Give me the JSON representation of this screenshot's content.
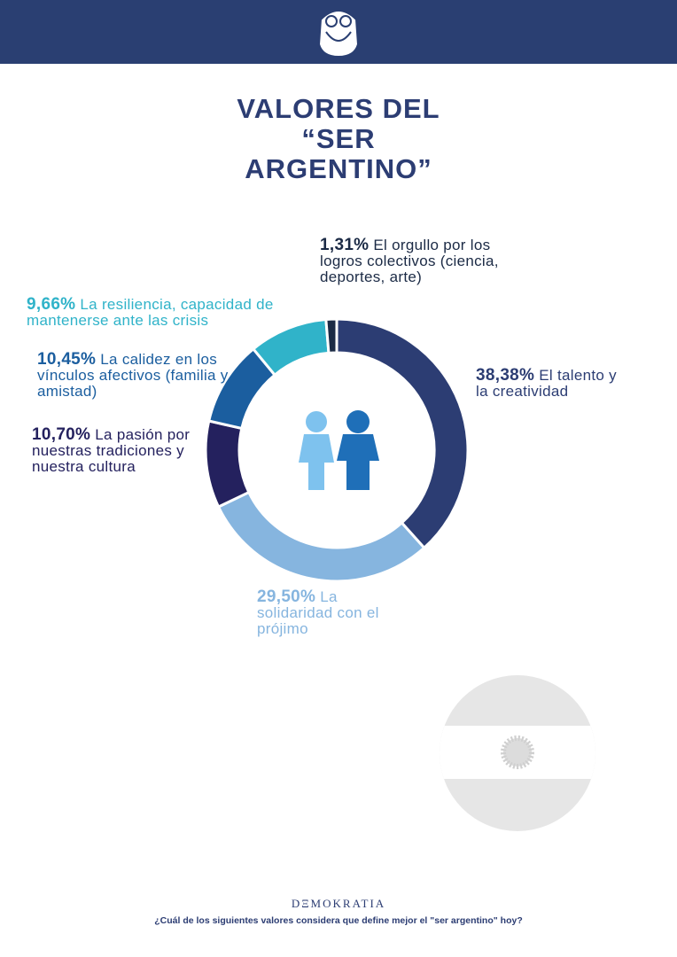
{
  "chart_data": {
    "type": "donut",
    "title": "VALORES DEL “SER ARGENTINO”",
    "categories": [
      "El talento y la creatividad",
      "La solidaridad con el prójimo",
      "La pasión por nuestras tradiciones y nuestra cultura",
      "La calidez en los vínculos afectivos (familia y amistad)",
      "La resiliencia, capacidad de mantenerse ante las crisis",
      "El orgullo por los logros colectivos (ciencia, deportes, arte)"
    ],
    "values": [
      38.38,
      29.5,
      10.7,
      10.45,
      9.66,
      1.31
    ],
    "value_labels": [
      "38,38%",
      "29,50%",
      "10,70%",
      "10,45%",
      "9,66%",
      "1,31%"
    ],
    "colors": [
      "#2c3d73",
      "#86b5df",
      "#24215e",
      "#1b5e9f",
      "#30b3c9",
      "#1b2a45"
    ]
  },
  "footer": {
    "brand": "DΞMOKRATIA",
    "question": "¿Cuál de los siguientes valores considera que define mejor el \"ser argentino\" hoy?"
  }
}
